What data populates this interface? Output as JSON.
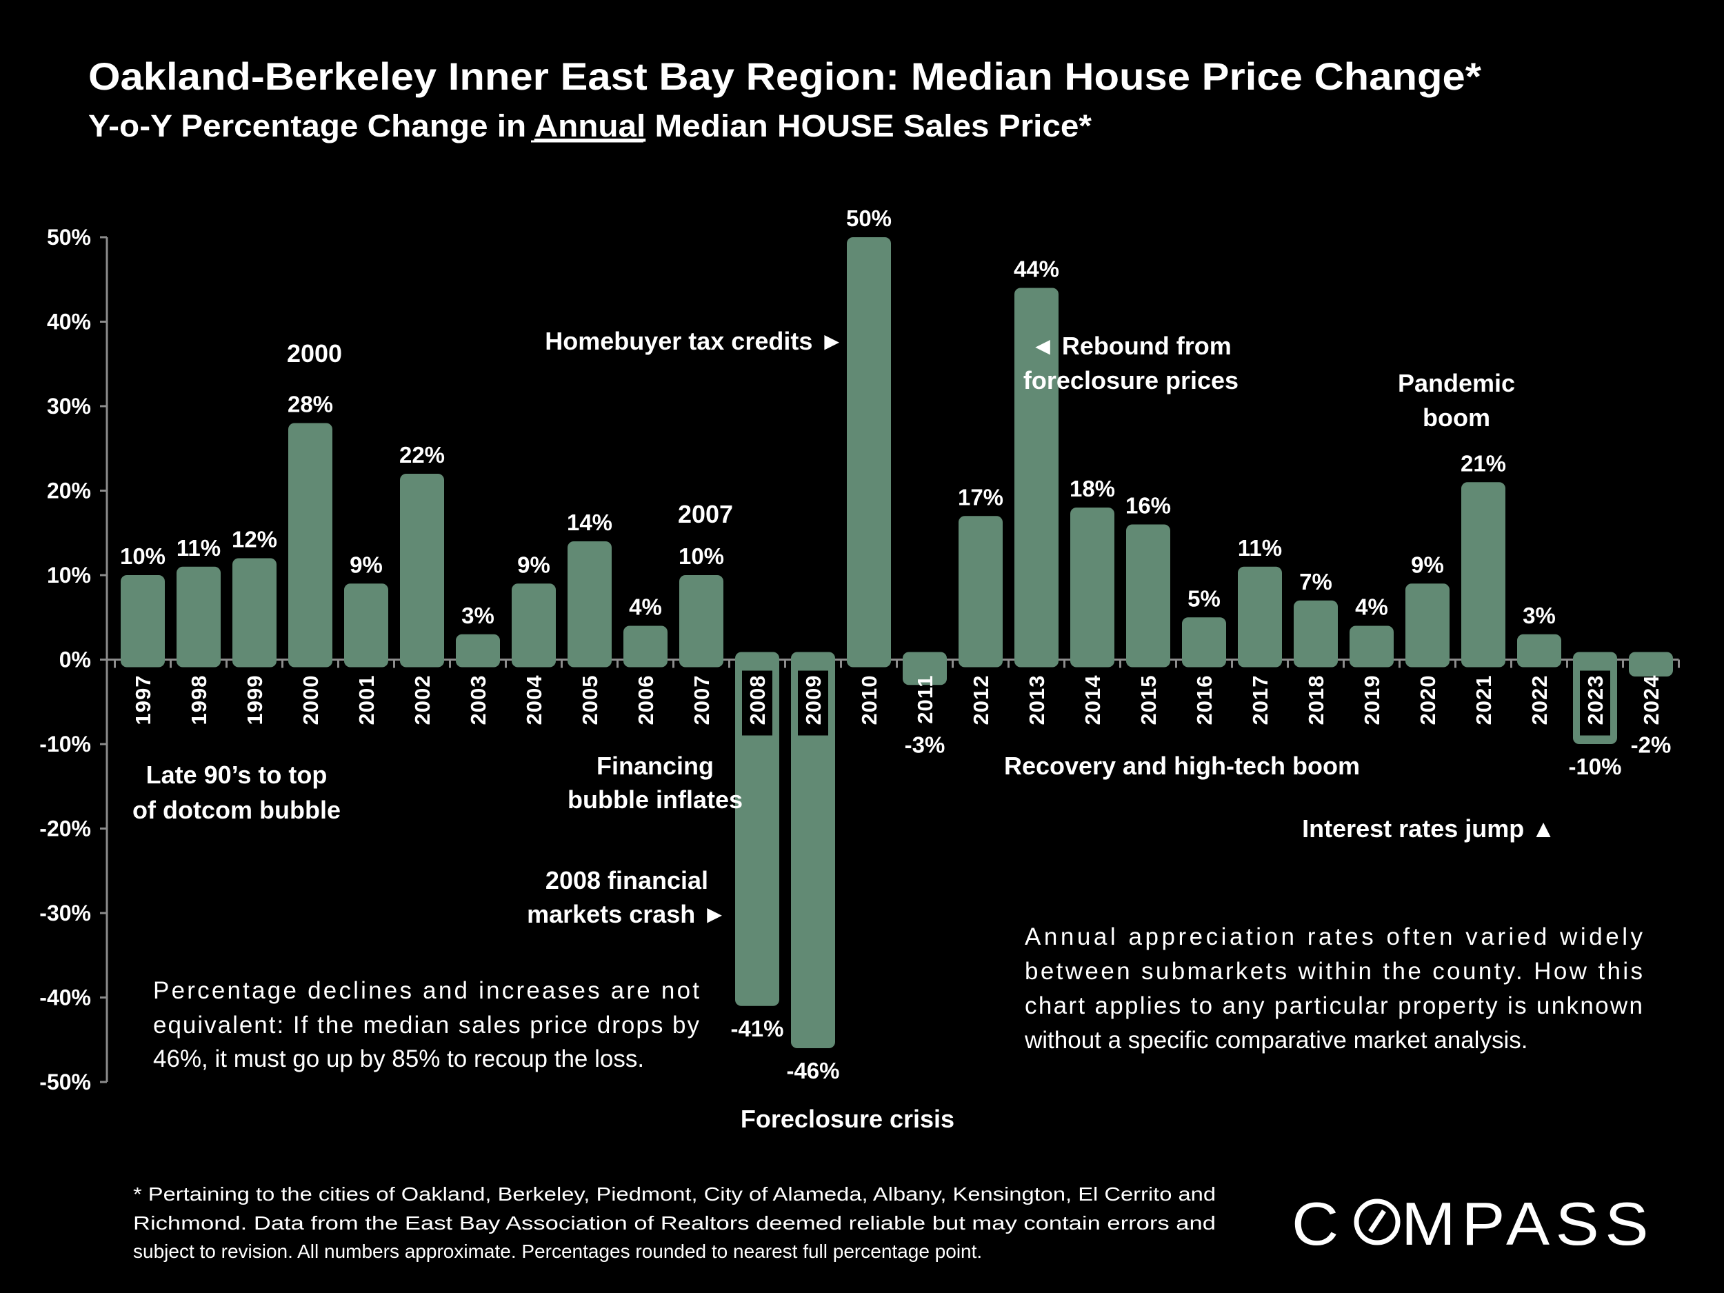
{
  "title": "Oakland-Berkeley Inner East Bay Region: Median House Price Change*",
  "subtitle": {
    "before": "Y-o-Y Percentage Change in ",
    "underlined": "Annual",
    "after": " Median HOUSE Sales Price*"
  },
  "colors": {
    "background": "#000000",
    "bar": "#628a74",
    "text": "#ffffff",
    "axis": "#8c8c8c"
  },
  "chart_data": {
    "type": "bar",
    "title": "Oakland-Berkeley Inner East Bay Region: Median House Price Change*",
    "subtitle": "Y-o-Y Percentage Change in Annual Median HOUSE Sales Price*",
    "xlabel": "",
    "ylabel": "",
    "ylim": [
      -50,
      50
    ],
    "yticks": [
      "50%",
      "40%",
      "30%",
      "20%",
      "10%",
      "0%",
      "-10%",
      "-20%",
      "-30%",
      "-40%",
      "-50%"
    ],
    "grid": false,
    "categories": [
      "1997",
      "1998",
      "1999",
      "2000",
      "2001",
      "2002",
      "2003",
      "2004",
      "2005",
      "2006",
      "2007",
      "2008",
      "2009",
      "2010",
      "2011",
      "2012",
      "2013",
      "2014",
      "2015",
      "2016",
      "2017",
      "2018",
      "2019",
      "2020",
      "2021",
      "2022",
      "2023",
      "2024"
    ],
    "values": [
      10,
      11,
      12,
      28,
      9,
      22,
      3,
      9,
      14,
      4,
      10,
      -41,
      -46,
      50,
      -3,
      17,
      44,
      18,
      16,
      5,
      11,
      7,
      4,
      9,
      21,
      3,
      -10,
      -2
    ],
    "data_labels": [
      "10%",
      "11%",
      "12%",
      "28%",
      "9%",
      "22%",
      "3%",
      "9%",
      "14%",
      "4%",
      "10%",
      "-41%",
      "-46%",
      "50%",
      "-3%",
      "17%",
      "44%",
      "18%",
      "16%",
      "5%",
      "11%",
      "7%",
      "4%",
      "9%",
      "21%",
      "3%",
      "-10%",
      "-2%"
    ]
  },
  "annotations": {
    "y2000": "2000",
    "y2007": "2007",
    "homebuyer": "Homebuyer tax credits ►",
    "rebound": [
      "◄ Rebound from",
      "foreclosure prices"
    ],
    "pandemic": [
      "Pandemic",
      "boom"
    ],
    "late90s": [
      "Late 90’s to top",
      "of dotcom bubble"
    ],
    "financing": [
      "Financing",
      "bubble inflates"
    ],
    "recovery": "Recovery and high-tech boom",
    "interest": "Interest rates jump ▲",
    "crash": [
      "2008 financial",
      "markets crash ►"
    ],
    "foreclosure": "Foreclosure crisis"
  },
  "notes": {
    "left": [
      "Percentage declines and increases are not",
      "equivalent: If the median sales price drops by",
      "46%, it must go up by 85% to recoup the loss."
    ],
    "right": [
      "Annual appreciation rates often varied widely",
      "between submarkets within the county. How this",
      "chart applies to any particular property is unknown",
      "without a specific comparative market analysis."
    ]
  },
  "footnote": [
    "* Pertaining to the cities of Oakland, Berkeley, Piedmont, City of Alameda, Albany, Kensington, El Cerrito and",
    "Richmond. Data from the East Bay Association of Realtors deemed reliable but may contain errors and",
    "subject to revision. All numbers approximate. Percentages rounded to nearest full percentage point."
  ],
  "logo": "COMPASS"
}
